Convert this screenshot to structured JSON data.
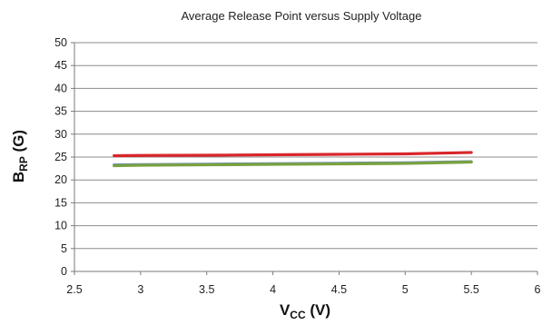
{
  "chart_data": {
    "type": "line",
    "title": "Average Release Point versus Supply Voltage",
    "xlabel": {
      "main": "V",
      "sub": "CC",
      "suffix": " (V)"
    },
    "ylabel": {
      "main": "B",
      "sub": "RP",
      "suffix": " (G)"
    },
    "xlim": [
      2.5,
      6
    ],
    "ylim": [
      0,
      50
    ],
    "x_ticks": [
      2.5,
      3,
      3.5,
      4,
      4.5,
      5,
      5.5,
      6
    ],
    "x_tick_labels": [
      "2.5",
      "3",
      "3.5",
      "4",
      "4.5",
      "5",
      "5.5",
      "6"
    ],
    "y_ticks": [
      0,
      5,
      10,
      15,
      20,
      25,
      30,
      35,
      40,
      45,
      50
    ],
    "y_tick_labels": [
      "0",
      "5",
      "10",
      "15",
      "20",
      "25",
      "30",
      "35",
      "40",
      "45",
      "50"
    ],
    "grid": true,
    "x": [
      2.8,
      3.0,
      3.5,
      4.0,
      4.5,
      5.0,
      5.5
    ],
    "series": [
      {
        "values": [
          25.3,
          25.35,
          25.4,
          25.5,
          25.6,
          25.7,
          26.0
        ],
        "color": "#d9262b"
      },
      {
        "values": [
          23.3,
          23.35,
          23.45,
          23.55,
          23.65,
          23.75,
          24.0
        ],
        "color": "#6f8fb5"
      },
      {
        "values": [
          23.1,
          23.2,
          23.3,
          23.4,
          23.5,
          23.6,
          23.9
        ],
        "color": "#7aa23f"
      }
    ]
  }
}
